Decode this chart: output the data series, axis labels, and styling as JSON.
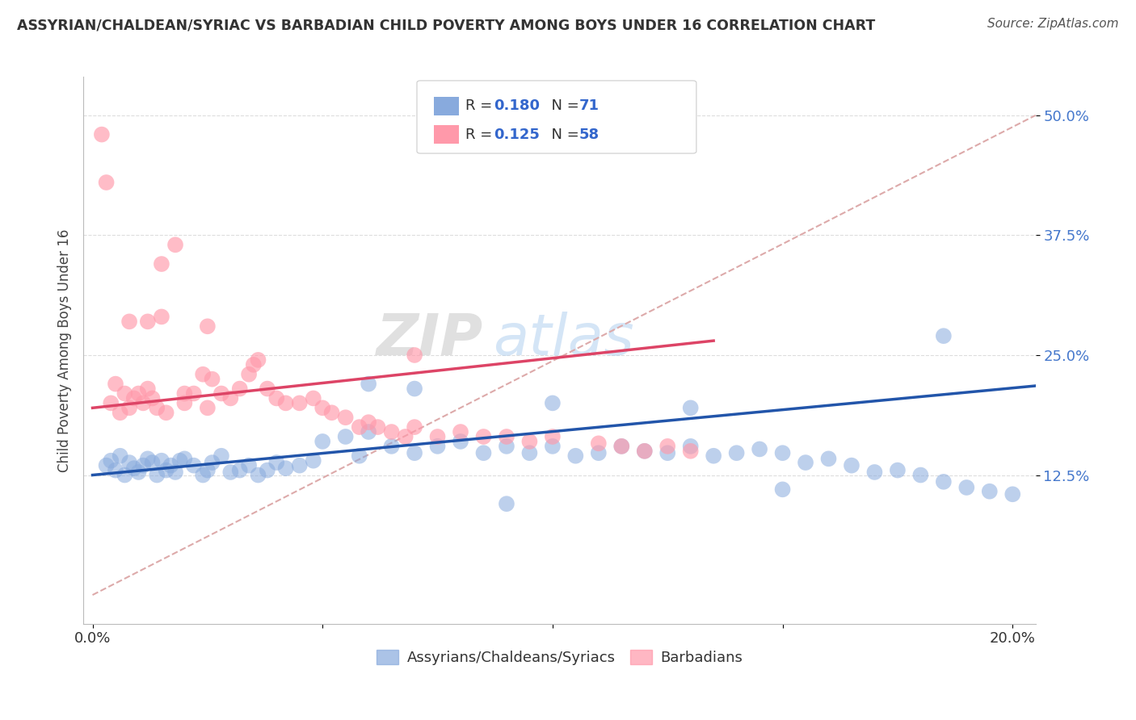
{
  "title": "ASSYRIAN/CHALDEAN/SYRIAC VS BARBADIAN CHILD POVERTY AMONG BOYS UNDER 16 CORRELATION CHART",
  "source": "Source: ZipAtlas.com",
  "ylabel": "Child Poverty Among Boys Under 16",
  "xlim": [
    0.0,
    0.205
  ],
  "ylim": [
    -0.03,
    0.54
  ],
  "blue_color": "#88AADD",
  "pink_color": "#FF99AA",
  "blue_line_color": "#2255AA",
  "pink_line_color": "#DD4466",
  "diagonal_color": "#DDAAAA",
  "R_blue": 0.18,
  "N_blue": 71,
  "R_pink": 0.125,
  "N_pink": 58,
  "legend_labels": [
    "Assyrians/Chaldeans/Syriacs",
    "Barbadians"
  ],
  "watermark_zip": "ZIP",
  "watermark_atlas": "atlas",
  "blue_x": [
    0.003,
    0.004,
    0.005,
    0.006,
    0.007,
    0.008,
    0.009,
    0.01,
    0.011,
    0.012,
    0.013,
    0.014,
    0.015,
    0.016,
    0.017,
    0.018,
    0.019,
    0.02,
    0.022,
    0.024,
    0.025,
    0.026,
    0.028,
    0.03,
    0.032,
    0.034,
    0.036,
    0.038,
    0.04,
    0.042,
    0.045,
    0.048,
    0.05,
    0.055,
    0.058,
    0.06,
    0.065,
    0.07,
    0.075,
    0.08,
    0.085,
    0.09,
    0.095,
    0.1,
    0.105,
    0.11,
    0.115,
    0.12,
    0.125,
    0.13,
    0.135,
    0.14,
    0.145,
    0.15,
    0.155,
    0.16,
    0.165,
    0.17,
    0.175,
    0.18,
    0.185,
    0.19,
    0.195,
    0.2,
    0.06,
    0.07,
    0.1,
    0.13,
    0.185,
    0.15,
    0.09
  ],
  "blue_y": [
    0.135,
    0.14,
    0.13,
    0.145,
    0.125,
    0.138,
    0.132,
    0.128,
    0.135,
    0.142,
    0.138,
    0.125,
    0.14,
    0.13,
    0.135,
    0.128,
    0.14,
    0.142,
    0.135,
    0.125,
    0.13,
    0.138,
    0.145,
    0.128,
    0.13,
    0.135,
    0.125,
    0.13,
    0.138,
    0.132,
    0.135,
    0.14,
    0.16,
    0.165,
    0.145,
    0.17,
    0.155,
    0.148,
    0.155,
    0.16,
    0.148,
    0.155,
    0.148,
    0.155,
    0.145,
    0.148,
    0.155,
    0.15,
    0.148,
    0.155,
    0.145,
    0.148,
    0.152,
    0.148,
    0.138,
    0.142,
    0.135,
    0.128,
    0.13,
    0.125,
    0.118,
    0.112,
    0.108,
    0.105,
    0.22,
    0.215,
    0.2,
    0.195,
    0.27,
    0.11,
    0.095
  ],
  "pink_x": [
    0.002,
    0.004,
    0.005,
    0.006,
    0.007,
    0.008,
    0.009,
    0.01,
    0.011,
    0.012,
    0.013,
    0.014,
    0.015,
    0.016,
    0.018,
    0.02,
    0.022,
    0.024,
    0.025,
    0.026,
    0.028,
    0.03,
    0.032,
    0.034,
    0.035,
    0.036,
    0.038,
    0.04,
    0.042,
    0.045,
    0.048,
    0.05,
    0.052,
    0.055,
    0.058,
    0.06,
    0.062,
    0.065,
    0.068,
    0.07,
    0.075,
    0.08,
    0.085,
    0.09,
    0.095,
    0.1,
    0.11,
    0.115,
    0.12,
    0.125,
    0.13,
    0.003,
    0.008,
    0.012,
    0.015,
    0.02,
    0.025,
    0.07
  ],
  "pink_y": [
    0.48,
    0.2,
    0.22,
    0.19,
    0.21,
    0.195,
    0.205,
    0.21,
    0.2,
    0.215,
    0.205,
    0.195,
    0.345,
    0.19,
    0.365,
    0.2,
    0.21,
    0.23,
    0.195,
    0.225,
    0.21,
    0.205,
    0.215,
    0.23,
    0.24,
    0.245,
    0.215,
    0.205,
    0.2,
    0.2,
    0.205,
    0.195,
    0.19,
    0.185,
    0.175,
    0.18,
    0.175,
    0.17,
    0.165,
    0.175,
    0.165,
    0.17,
    0.165,
    0.165,
    0.16,
    0.165,
    0.158,
    0.155,
    0.15,
    0.155,
    0.15,
    0.43,
    0.285,
    0.285,
    0.29,
    0.21,
    0.28,
    0.25
  ]
}
